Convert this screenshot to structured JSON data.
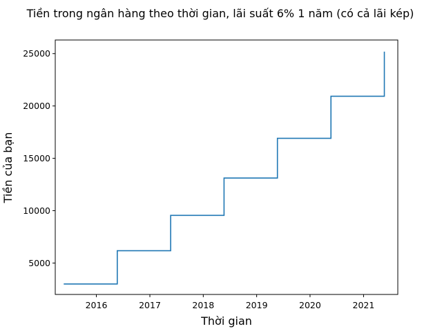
{
  "chart_data": {
    "type": "line",
    "title": "Tiền trong ngân hàng theo thời gian, lãi suất 6% 1 năm (có cả lãi kép)",
    "xlabel": "Thời gian",
    "ylabel": "Tiền của bạn",
    "line_style": "step",
    "line_color": "#1f77b4",
    "grid": false,
    "legend": "none",
    "xlim": [
      "2015-03-26",
      "2021-08-23"
    ],
    "ylim": [
      2000,
      26300
    ],
    "x_ticks": [
      {
        "value": "2016-01-01",
        "label": "2016"
      },
      {
        "value": "2017-01-01",
        "label": "2017"
      },
      {
        "value": "2018-01-01",
        "label": "2018"
      },
      {
        "value": "2019-01-01",
        "label": "2019"
      },
      {
        "value": "2020-01-01",
        "label": "2020"
      },
      {
        "value": "2021-01-01",
        "label": "2021"
      }
    ],
    "y_ticks": [
      {
        "value": 5000,
        "label": "5000"
      },
      {
        "value": 10000,
        "label": "10000"
      },
      {
        "value": 15000,
        "label": "15000"
      },
      {
        "value": 20000,
        "label": "20000"
      },
      {
        "value": 25000,
        "label": "25000"
      }
    ],
    "series": [
      {
        "x": [
          "2015-05-23",
          "2016-05-23",
          "2017-05-23",
          "2018-05-23",
          "2019-05-23",
          "2020-05-23",
          "2021-05-23"
        ],
        "values": [
          3000,
          6180,
          9550,
          13120,
          16910,
          20930,
          25190
        ]
      }
    ]
  }
}
